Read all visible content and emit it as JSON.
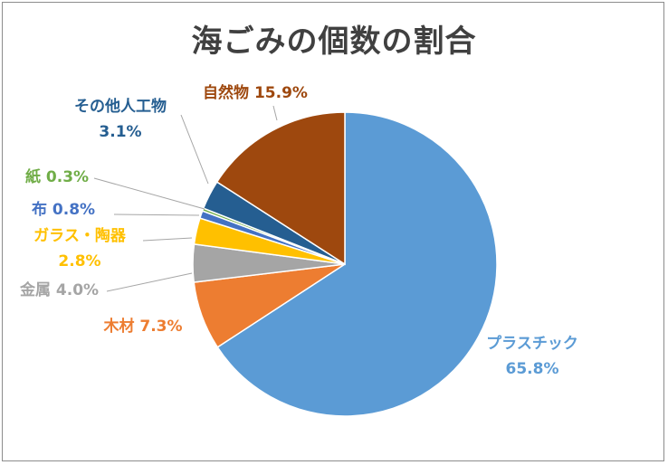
{
  "chart_data": {
    "type": "pie",
    "title": "海ごみの個数の割合",
    "slices": [
      {
        "name": "プラスチック",
        "value": 65.8,
        "label": "65.8%",
        "color": "#5b9bd5"
      },
      {
        "name": "木材",
        "value": 7.3,
        "label": "7.3%",
        "color": "#ed7d31"
      },
      {
        "name": "金属",
        "value": 4.0,
        "label": "4.0%",
        "color": "#a5a5a5"
      },
      {
        "name": "ガラス・陶器",
        "value": 2.8,
        "label": "2.8%",
        "color": "#ffc000"
      },
      {
        "name": "布",
        "value": 0.8,
        "label": "0.8%",
        "color": "#4472c4"
      },
      {
        "name": "紙",
        "value": 0.3,
        "label": "0.3%",
        "color": "#70ad47"
      },
      {
        "name": "その他人工物",
        "value": 3.1,
        "label": "3.1%",
        "color": "#255e91"
      },
      {
        "name": "自然物",
        "value": 15.9,
        "label": "15.9%",
        "color": "#9e480e"
      }
    ],
    "legend": "none",
    "data_labels": "outside with leader lines"
  }
}
